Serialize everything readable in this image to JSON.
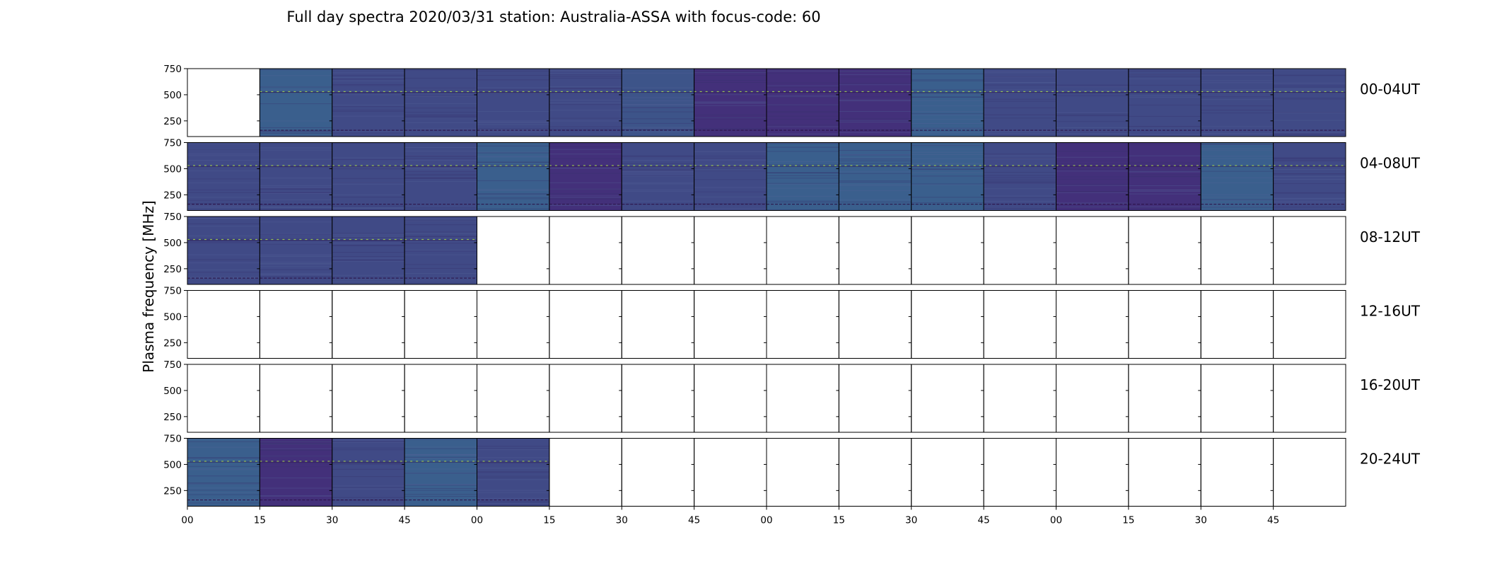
{
  "chart_data": {
    "type": "heatmap",
    "title": "Full day spectra 2020/03/31 station: Australia-ASSA with focus-code: 60",
    "ylabel": "Plasma frequency [MHz]",
    "xlabel": "",
    "y_ticks": [
      "750",
      "500",
      "250"
    ],
    "y_tick_values": [
      750,
      500,
      250
    ],
    "ylim": [
      100,
      750
    ],
    "x_tick_labels": [
      "00",
      "15",
      "30",
      "45",
      "00",
      "15",
      "30",
      "45",
      "00",
      "15",
      "30",
      "45",
      "00",
      "15",
      "30",
      "45"
    ],
    "rows": [
      "00-04UT",
      "04-08UT",
      "08-12UT",
      "12-16UT",
      "16-20UT",
      "20-24UT"
    ],
    "panels_per_row": 16,
    "colormap": "viridis",
    "panel_shades": [
      [
        "none",
        "blue",
        "indigo",
        "indigo",
        "indigo",
        "indigo",
        "blue-indigo",
        "purple",
        "purple",
        "purple",
        "blue",
        "indigo",
        "indigo",
        "indigo",
        "indigo",
        "indigo"
      ],
      [
        "indigo",
        "indigo",
        "indigo",
        "indigo",
        "blue",
        "purple",
        "indigo",
        "indigo",
        "blue",
        "blue",
        "blue",
        "indigo",
        "purple",
        "purple",
        "blue",
        "indigo"
      ],
      [
        "indigo",
        "indigo",
        "indigo",
        "indigo",
        "none",
        "none",
        "none",
        "none",
        "none",
        "none",
        "none",
        "none",
        "none",
        "none",
        "none",
        "none"
      ],
      [
        "none",
        "none",
        "none",
        "none",
        "none",
        "none",
        "none",
        "none",
        "none",
        "none",
        "none",
        "none",
        "none",
        "none",
        "none",
        "none"
      ],
      [
        "none",
        "none",
        "none",
        "none",
        "none",
        "none",
        "none",
        "none",
        "none",
        "none",
        "none",
        "none",
        "none",
        "none",
        "none",
        "none"
      ],
      [
        "blue",
        "purple",
        "indigo",
        "blue",
        "indigo",
        "none",
        "none",
        "none",
        "none",
        "none",
        "none",
        "none",
        "none",
        "none",
        "none",
        "none"
      ]
    ],
    "colors": {
      "blue": "#3a5f8d",
      "blue-indigo": "#3d5489",
      "indigo": "#404a86",
      "purple": "#43307a",
      "line_bright": "#a6db4f",
      "line_dark": "#2a0f45",
      "frame": "#000000"
    }
  }
}
